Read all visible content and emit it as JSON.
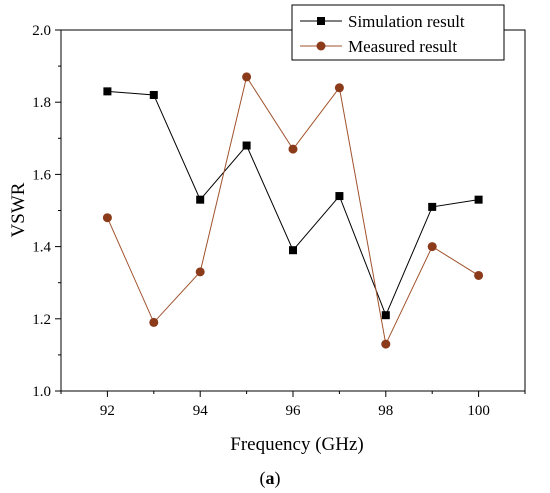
{
  "chart_data": {
    "type": "line",
    "xlabel": "Frequency (GHz)",
    "ylabel": "VSWR",
    "caption_open": "(",
    "caption_letter": "a",
    "caption_close": ")",
    "xlim": [
      91,
      101
    ],
    "ylim": [
      1.0,
      2.0
    ],
    "x_ticks": [
      92,
      94,
      96,
      98,
      100
    ],
    "y_ticks": [
      1.0,
      1.2,
      1.4,
      1.6,
      1.8,
      2.0
    ],
    "y_tick_labels": [
      "1.0",
      "1.2",
      "1.4",
      "1.6",
      "1.8",
      "2.0"
    ],
    "grid": false,
    "legend_position": "top-right",
    "x": [
      92,
      93,
      94,
      95,
      96,
      97,
      98,
      99,
      100
    ],
    "series": [
      {
        "name": "Simulation result",
        "marker": "square",
        "line_color": "#000000",
        "marker_color": "#000000",
        "values": [
          1.83,
          1.82,
          1.53,
          1.68,
          1.39,
          1.54,
          1.21,
          1.51,
          1.53
        ]
      },
      {
        "name": "Measured result",
        "marker": "circle",
        "line_color": "#a0522d",
        "marker_color": "#8b3a1a",
        "values": [
          1.48,
          1.19,
          1.33,
          1.87,
          1.67,
          1.84,
          1.13,
          1.4,
          1.32
        ]
      }
    ]
  }
}
